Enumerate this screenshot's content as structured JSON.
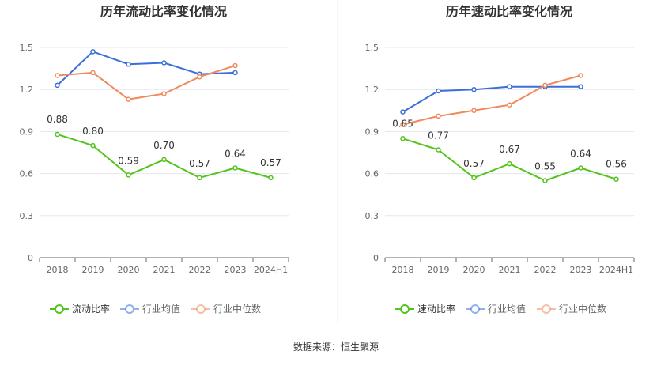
{
  "source": "数据来源：恒生聚源",
  "chart_data": [
    {
      "type": "line",
      "title": "历年流动比率变化情况",
      "categories": [
        "2018",
        "2019",
        "2020",
        "2021",
        "2022",
        "2023",
        "2024H1"
      ],
      "yticks": [
        "0",
        "0.3",
        "0.6",
        "0.9",
        "1.2",
        "1.5"
      ],
      "ylim": [
        0,
        1.5
      ],
      "series": [
        {
          "name": "流动比率",
          "color": "#52c41a",
          "values": [
            0.88,
            0.8,
            0.59,
            0.7,
            0.57,
            0.64,
            0.57
          ],
          "labels": [
            "0.88",
            "0.80",
            "0.59",
            "0.70",
            "0.57",
            "0.64",
            "0.57"
          ]
        },
        {
          "name": "行业均值",
          "color": "#3a6fd8",
          "values": [
            1.23,
            1.47,
            1.38,
            1.39,
            1.31,
            1.32,
            null
          ]
        },
        {
          "name": "行业中位数",
          "color": "#f08a5d",
          "values": [
            1.3,
            1.32,
            1.13,
            1.17,
            1.29,
            1.37,
            null
          ]
        }
      ]
    },
    {
      "type": "line",
      "title": "历年速动比率变化情况",
      "categories": [
        "2018",
        "2019",
        "2020",
        "2021",
        "2022",
        "2023",
        "2024H1"
      ],
      "yticks": [
        "0",
        "0.3",
        "0.6",
        "0.9",
        "1.2",
        "1.5"
      ],
      "ylim": [
        0,
        1.5
      ],
      "series": [
        {
          "name": "速动比率",
          "color": "#52c41a",
          "values": [
            0.85,
            0.77,
            0.57,
            0.67,
            0.55,
            0.64,
            0.56
          ],
          "labels": [
            "0.85",
            "0.77",
            "0.57",
            "0.67",
            "0.55",
            "0.64",
            "0.56"
          ]
        },
        {
          "name": "行业均值",
          "color": "#3a6fd8",
          "values": [
            1.04,
            1.19,
            1.2,
            1.22,
            1.22,
            1.22,
            null
          ]
        },
        {
          "name": "行业中位数",
          "color": "#f08a5d",
          "values": [
            0.95,
            1.01,
            1.05,
            1.09,
            1.23,
            1.3,
            null
          ]
        }
      ]
    }
  ]
}
